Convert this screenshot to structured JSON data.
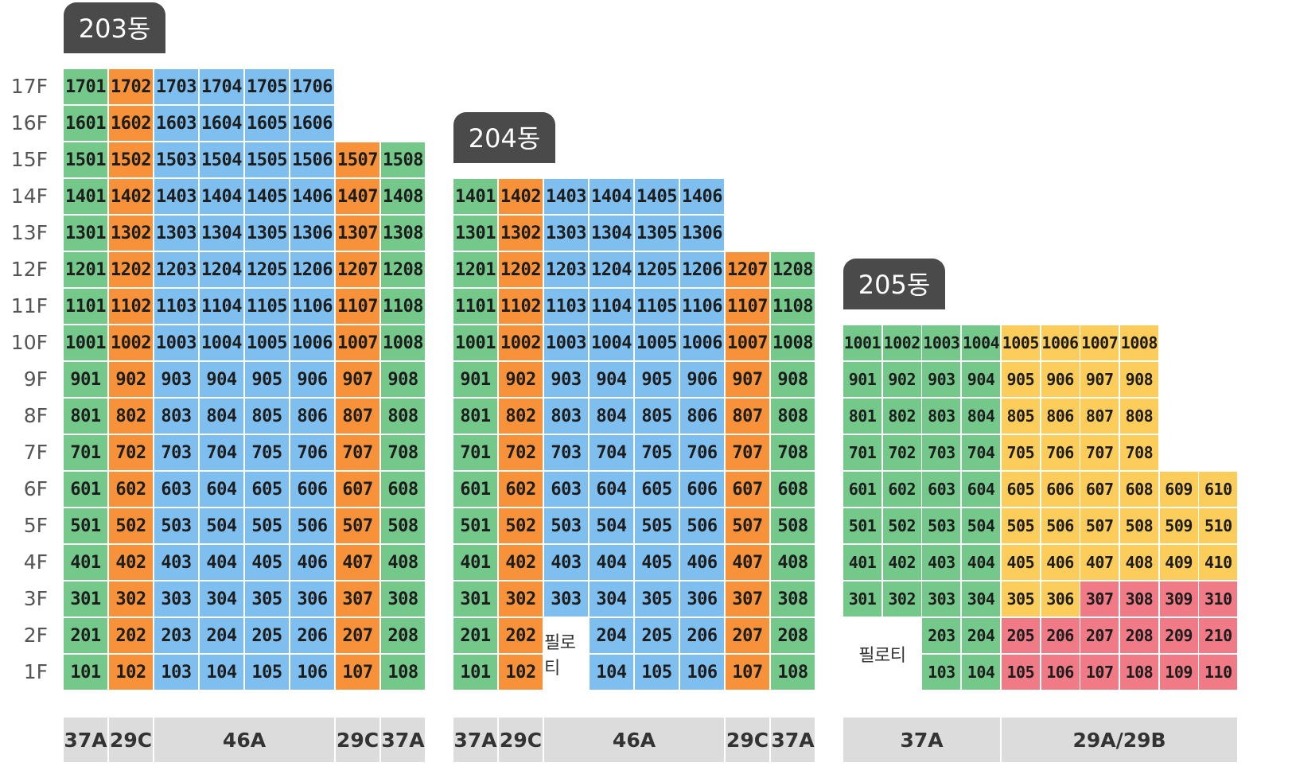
{
  "colors": {
    "green": "#74c88a",
    "orange": "#f7913a",
    "blue": "#7fbff0",
    "yellow": "#fdcd5c",
    "pink": "#f07a85",
    "type_bar": "#dcdcdc",
    "tag": "#4a4a4a"
  },
  "floors": [
    "17F",
    "16F",
    "15F",
    "14F",
    "13F",
    "12F",
    "11F",
    "10F",
    "9F",
    "8F",
    "7F",
    "6F",
    "5F",
    "4F",
    "3F",
    "2F",
    "1F"
  ],
  "buildings": [
    {
      "name": "203동",
      "columns": [
        {
          "color": "green",
          "max": 17
        },
        {
          "color": "orange",
          "max": 17
        },
        {
          "color": "blue",
          "max": 17
        },
        {
          "color": "blue",
          "max": 17
        },
        {
          "color": "blue",
          "max": 17
        },
        {
          "color": "blue",
          "max": 17
        },
        {
          "color": "orange",
          "max": 15
        },
        {
          "color": "green",
          "max": 15
        }
      ],
      "pilotis": [],
      "types": [
        {
          "label": "37A",
          "span": 1
        },
        {
          "label": "29C",
          "span": 1
        },
        {
          "label": "46A",
          "span": 4
        },
        {
          "label": "29C",
          "span": 1
        },
        {
          "label": "37A",
          "span": 1
        }
      ]
    },
    {
      "name": "204동",
      "columns": [
        {
          "color": "green",
          "max": 14
        },
        {
          "color": "orange",
          "max": 14
        },
        {
          "color": "blue",
          "max": 14
        },
        {
          "color": "blue",
          "max": 14
        },
        {
          "color": "blue",
          "max": 14
        },
        {
          "color": "blue",
          "max": 14
        },
        {
          "color": "orange",
          "max": 12
        },
        {
          "color": "green",
          "max": 12
        }
      ],
      "pilotis": [
        {
          "col": 2,
          "floors": [
            1,
            2
          ],
          "text": "필로티"
        }
      ],
      "types": [
        {
          "label": "37A",
          "span": 1
        },
        {
          "label": "29C",
          "span": 1
        },
        {
          "label": "46A",
          "span": 4
        },
        {
          "label": "29C",
          "span": 1
        },
        {
          "label": "37A",
          "span": 1
        }
      ]
    },
    {
      "name": "205동",
      "columns": [
        {
          "color": "green",
          "max": 10
        },
        {
          "color": "green",
          "max": 10
        },
        {
          "color": "green",
          "max": 10
        },
        {
          "color": "green",
          "max": 10
        },
        {
          "color": "yellow",
          "max": 10,
          "pink_upto": 2
        },
        {
          "color": "yellow",
          "max": 10,
          "pink_upto": 2
        },
        {
          "color": "yellow",
          "max": 10,
          "pink_upto": 3
        },
        {
          "color": "yellow",
          "max": 10,
          "pink_upto": 3
        },
        {
          "color": "yellow",
          "max": 6,
          "pink_upto": 3
        },
        {
          "color": "yellow",
          "max": 6,
          "pink_upto": 3
        }
      ],
      "pilotis": [
        {
          "col": 0,
          "colspan": 2,
          "floors": [
            1,
            2
          ],
          "text": "필로티"
        }
      ],
      "types": [
        {
          "label": "37A",
          "span": 4
        },
        {
          "label": "29A/29B",
          "span": 6
        }
      ]
    }
  ]
}
